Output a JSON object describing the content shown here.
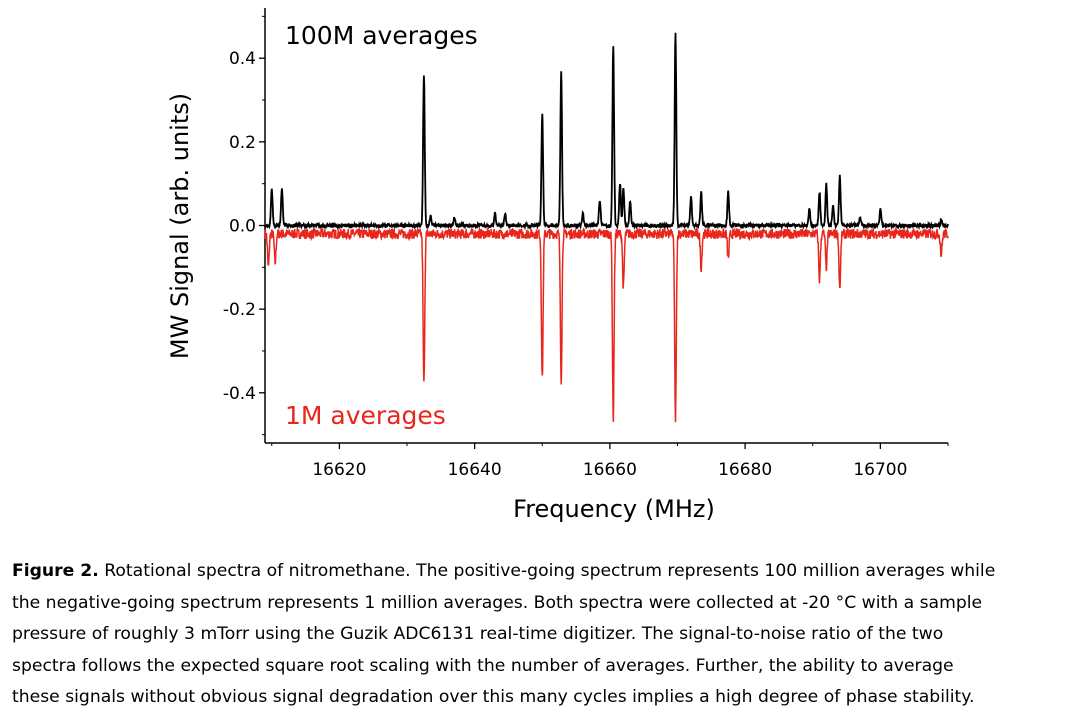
{
  "chart_data": {
    "type": "line",
    "xlabel": "Frequency (MHz)",
    "ylabel": "MW Signal (arb. units)",
    "xlim": [
      16609,
      16710
    ],
    "ylim": [
      -0.52,
      0.52
    ],
    "x_ticks": [
      16620,
      16640,
      16660,
      16680,
      16700
    ],
    "y_ticks": [
      0.4,
      0.2,
      0.0,
      -0.2,
      -0.4
    ],
    "x_tick_labels": [
      "16620",
      "16640",
      "16660",
      "16680",
      "16700"
    ],
    "y_tick_labels": [
      "0.4",
      "0.2",
      "0.0",
      "-0.2",
      "-0.4"
    ],
    "grid": false,
    "annotations": [
      "100M averages",
      "1M averages"
    ],
    "series": [
      {
        "name": "100M averages",
        "color": "#000000",
        "baseline": 0.0,
        "x_range": [
          16609,
          16710
        ],
        "peaks": [
          {
            "x": 16610.0,
            "y": 0.09
          },
          {
            "x": 16611.5,
            "y": 0.09
          },
          {
            "x": 16632.5,
            "y": 0.36
          },
          {
            "x": 16633.5,
            "y": 0.025
          },
          {
            "x": 16637.0,
            "y": 0.02
          },
          {
            "x": 16643.0,
            "y": 0.03
          },
          {
            "x": 16644.5,
            "y": 0.03
          },
          {
            "x": 16650.0,
            "y": 0.27
          },
          {
            "x": 16652.8,
            "y": 0.37
          },
          {
            "x": 16656.0,
            "y": 0.03
          },
          {
            "x": 16658.5,
            "y": 0.06
          },
          {
            "x": 16660.5,
            "y": 0.43
          },
          {
            "x": 16661.5,
            "y": 0.1
          },
          {
            "x": 16662.0,
            "y": 0.09
          },
          {
            "x": 16663.0,
            "y": 0.06
          },
          {
            "x": 16669.7,
            "y": 0.46
          },
          {
            "x": 16672.0,
            "y": 0.07
          },
          {
            "x": 16673.5,
            "y": 0.08
          },
          {
            "x": 16677.5,
            "y": 0.08
          },
          {
            "x": 16689.5,
            "y": 0.04
          },
          {
            "x": 16691.0,
            "y": 0.08
          },
          {
            "x": 16692.0,
            "y": 0.1
          },
          {
            "x": 16693.0,
            "y": 0.05
          },
          {
            "x": 16694.0,
            "y": 0.12
          },
          {
            "x": 16697.0,
            "y": 0.02
          },
          {
            "x": 16700.0,
            "y": 0.04
          },
          {
            "x": 16709.0,
            "y": 0.015
          }
        ]
      },
      {
        "name": "1M averages",
        "color": "#e8261c",
        "baseline": -0.02,
        "x_range": [
          16609,
          16710
        ],
        "peaks": [
          {
            "x": 16609.5,
            "y": -0.1
          },
          {
            "x": 16610.5,
            "y": -0.09
          },
          {
            "x": 16632.5,
            "y": -0.38
          },
          {
            "x": 16650.0,
            "y": -0.37
          },
          {
            "x": 16652.8,
            "y": -0.37
          },
          {
            "x": 16660.5,
            "y": -0.46
          },
          {
            "x": 16662.0,
            "y": -0.15
          },
          {
            "x": 16669.7,
            "y": -0.46
          },
          {
            "x": 16673.5,
            "y": -0.1
          },
          {
            "x": 16677.5,
            "y": -0.08
          },
          {
            "x": 16691.0,
            "y": -0.13
          },
          {
            "x": 16692.0,
            "y": -0.1
          },
          {
            "x": 16694.0,
            "y": -0.15
          },
          {
            "x": 16709.0,
            "y": -0.07
          }
        ]
      }
    ]
  },
  "caption": {
    "label": "Figure 2.",
    "lines": [
      "Rotational spectra of nitromethane.  The positive-going spectrum represents 100 million averages while",
      "the negative-going spectrum represents 1 million averages.  Both spectra were collected at -20 °C with a sample",
      "pressure of roughly 3 mTorr using the Guzik ADC6131 real-time digitizer.  The signal-to-noise ratio of the two",
      "spectra follows the expected square root scaling with the number of averages.  Further, the ability to average",
      "these signals without obvious signal degradation over this many cycles implies a high degree of phase stability."
    ]
  }
}
